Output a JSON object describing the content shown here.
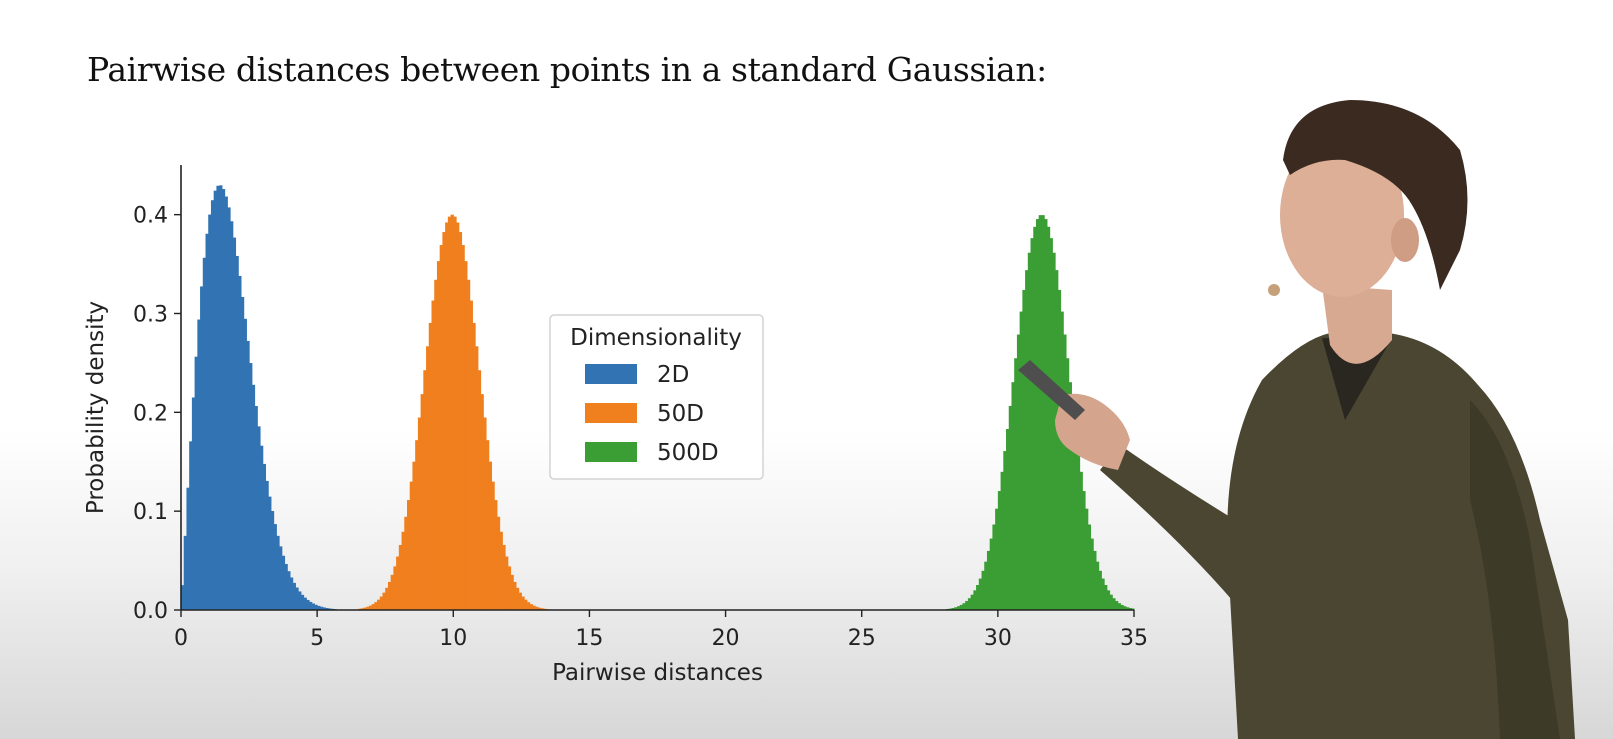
{
  "slide": {
    "title": "Pairwise distances between points in a standard Gaussian:"
  },
  "colors": {
    "2D": "#3274b3",
    "50D": "#f07f1e",
    "500D": "#3a9e35",
    "axis": "#222222"
  },
  "chart_data": {
    "type": "histogram",
    "xlabel": "Pairwise distances",
    "ylabel": "Probability density",
    "xlim": [
      0,
      35
    ],
    "ylim": [
      0,
      0.43
    ],
    "xticks": [
      0,
      5,
      10,
      15,
      20,
      25,
      30,
      35
    ],
    "xtick_labels": [
      "0",
      "5",
      "10",
      "15",
      "20",
      "25",
      "30",
      "35"
    ],
    "yticks": [
      0,
      0.1,
      0.2,
      0.3,
      0.4
    ],
    "ytick_labels": [
      "0.0",
      "0.1",
      "0.2",
      "0.3",
      "0.4"
    ],
    "grid": false,
    "legend": {
      "title": "Dimensionality",
      "placement": "center",
      "entries": [
        "2D",
        "50D",
        "500D"
      ]
    },
    "series": [
      {
        "name": "2D",
        "distribution": "rayleigh",
        "mode": 1.41,
        "peak_density": 0.43,
        "range": [
          0,
          6
        ]
      },
      {
        "name": "50D",
        "distribution": "approximately normal",
        "mean": 9.95,
        "std": 1.0,
        "peak_density": 0.4,
        "range": [
          6.5,
          13.5
        ]
      },
      {
        "name": "500D",
        "distribution": "approximately normal",
        "mean": 31.6,
        "std": 1.0,
        "peak_density": 0.4,
        "range": [
          28,
          35
        ]
      }
    ]
  }
}
